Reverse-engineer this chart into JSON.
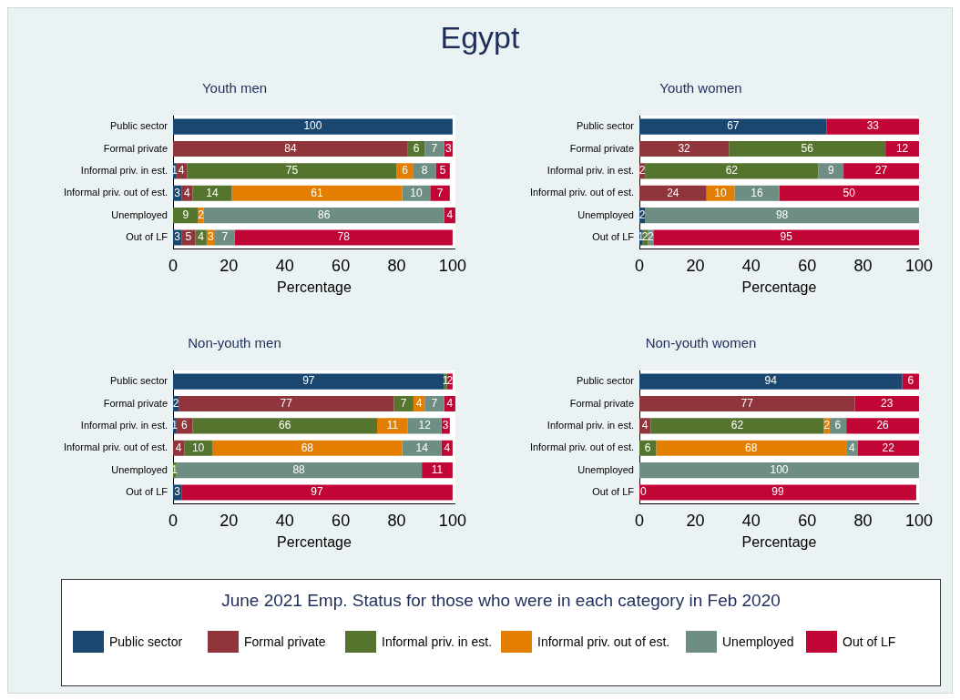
{
  "chart_data": [
    {
      "type": "bar",
      "orientation": "horizontal",
      "stacked": true,
      "title": "Youth men",
      "xlabel": "Percentage",
      "annotations": [
        "Egypt"
      ],
      "legend": "bottom",
      "legend_title": "June 2021 Emp. Status for those who were in each category in Feb 2020",
      "data_labels": true,
      "grid": false,
      "xlim": [
        0,
        101
      ],
      "xticks": [
        0,
        20,
        40,
        60,
        80,
        100
      ],
      "categories": [
        "Public sector",
        "Formal private",
        "Informal priv. in est.",
        "Informal priv. out of est.",
        "Unemployed",
        "Out of LF"
      ],
      "series": [
        {
          "name": "Public sector",
          "color": "#1a476f",
          "values": [
            100,
            null,
            1,
            3,
            null,
            3
          ]
        },
        {
          "name": "Formal private",
          "color": "#90353b",
          "values": [
            null,
            84,
            4,
            4,
            null,
            5
          ]
        },
        {
          "name": "Informal priv. in est.",
          "color": "#55752f",
          "values": [
            null,
            6,
            75,
            14,
            9,
            4
          ]
        },
        {
          "name": "Informal priv. out of est.",
          "color": "#e37e00",
          "values": [
            null,
            null,
            6,
            61,
            2,
            3
          ]
        },
        {
          "name": "Unemployed",
          "color": "#6e8e84",
          "values": [
            null,
            7,
            8,
            10,
            86,
            7
          ]
        },
        {
          "name": "Out of LF",
          "color": "#c10534",
          "values": [
            null,
            3,
            5,
            7,
            4,
            78
          ]
        }
      ]
    },
    {
      "type": "bar",
      "orientation": "horizontal",
      "stacked": true,
      "title": "Youth women",
      "xlabel": "Percentage",
      "data_labels": true,
      "grid": false,
      "xlim": [
        0,
        100
      ],
      "xticks": [
        0,
        20,
        40,
        60,
        80,
        100
      ],
      "categories": [
        "Public sector",
        "Formal private",
        "Informal priv. in est.",
        "Informal priv. out of est.",
        "Unemployed",
        "Out of LF"
      ],
      "series": [
        {
          "color": "#1a476f",
          "values": [
            67,
            null,
            null,
            null,
            2,
            1
          ]
        },
        {
          "color": "#90353b",
          "values": [
            null,
            32,
            2,
            24,
            null,
            null
          ]
        },
        {
          "color": "#55752f",
          "values": [
            null,
            56,
            62,
            null,
            null,
            2
          ]
        },
        {
          "color": "#e37e00",
          "values": [
            null,
            null,
            null,
            10,
            null,
            null
          ]
        },
        {
          "color": "#6e8e84",
          "values": [
            null,
            null,
            9,
            16,
            98,
            2
          ]
        },
        {
          "color": "#c10534",
          "values": [
            33,
            12,
            27,
            50,
            null,
            95
          ]
        }
      ]
    },
    {
      "type": "bar",
      "orientation": "horizontal",
      "stacked": true,
      "title": "Non-youth men",
      "xlabel": "Percentage",
      "data_labels": true,
      "grid": false,
      "xlim": [
        0,
        101
      ],
      "xticks": [
        0,
        20,
        40,
        60,
        80,
        100
      ],
      "categories": [
        "Public sector",
        "Formal private",
        "Informal priv. in est.",
        "Informal priv. out of est.",
        "Unemployed",
        "Out of LF"
      ],
      "series": [
        {
          "color": "#1a476f",
          "values": [
            97,
            2,
            1,
            null,
            null,
            3
          ]
        },
        {
          "color": "#90353b",
          "values": [
            null,
            77,
            6,
            4,
            null,
            null
          ]
        },
        {
          "color": "#55752f",
          "values": [
            1,
            7,
            66,
            10,
            1,
            null
          ]
        },
        {
          "color": "#e37e00",
          "values": [
            null,
            4,
            11,
            68,
            null,
            null
          ]
        },
        {
          "color": "#6e8e84",
          "values": [
            null,
            7,
            12,
            14,
            88,
            null
          ]
        },
        {
          "color": "#c10534",
          "values": [
            2,
            4,
            3,
            4,
            11,
            97
          ]
        }
      ]
    },
    {
      "type": "bar",
      "orientation": "horizontal",
      "stacked": true,
      "title": "Non-youth women",
      "xlabel": "Percentage",
      "annotations": [
        {
          "text": "0",
          "x": 0,
          "y": "Out of LF"
        }
      ],
      "data_labels": true,
      "grid": false,
      "xlim": [
        0,
        100
      ],
      "xticks": [
        0,
        20,
        40,
        60,
        80,
        100
      ],
      "categories": [
        "Public sector",
        "Formal private",
        "Informal priv. in est.",
        "Informal priv. out of est.",
        "Unemployed",
        "Out of LF"
      ],
      "series": [
        {
          "color": "#1a476f",
          "values": [
            94,
            null,
            null,
            null,
            null,
            null
          ]
        },
        {
          "color": "#90353b",
          "values": [
            null,
            77,
            4,
            null,
            null,
            null
          ]
        },
        {
          "color": "#55752f",
          "values": [
            null,
            null,
            62,
            6,
            null,
            null
          ]
        },
        {
          "color": "#e37e00",
          "values": [
            null,
            null,
            2,
            68,
            null,
            null
          ]
        },
        {
          "color": "#6e8e84",
          "values": [
            null,
            null,
            6,
            4,
            100,
            null
          ]
        },
        {
          "color": "#c10534",
          "values": [
            6,
            23,
            26,
            22,
            null,
            99
          ]
        }
      ]
    }
  ]
}
